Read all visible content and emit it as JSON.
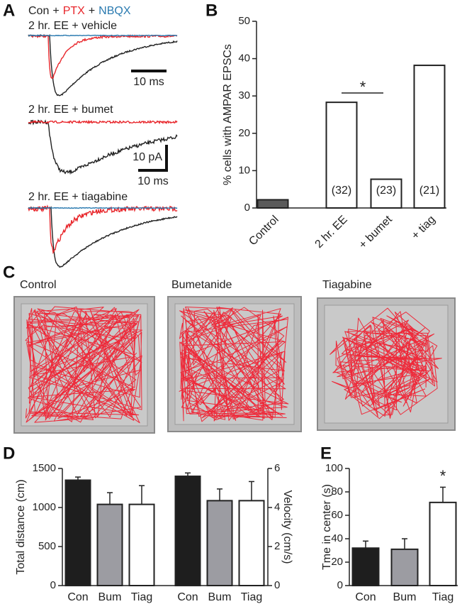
{
  "chart_data": [
    {
      "panel": "A",
      "type": "traces",
      "legend": [
        {
          "text": "Con",
          "color": "#222222"
        },
        {
          "text": "+",
          "color": "#222222"
        },
        {
          "text": "PTX",
          "color": "#e8262b"
        },
        {
          "text": "+",
          "color": "#222222"
        },
        {
          "text": "NBQX",
          "color": "#2a7ab0"
        }
      ],
      "traces": [
        "2 hr. EE + vehicle",
        "2 hr. EE + bumet",
        "2 hr. EE + tiagabine"
      ],
      "scale_labels": [
        "10 ms",
        "10 pA",
        "10 ms"
      ]
    },
    {
      "panel": "B",
      "type": "bar",
      "ylabel": "% cells with AMPAR EPSCs",
      "categories": [
        "Control",
        "2 hr. EE",
        "+ bumet",
        "+ tiag"
      ],
      "values": [
        2.2,
        28.3,
        7.7,
        38.2
      ],
      "colors": [
        "#5a5a5a",
        "#ffffff",
        "#ffffff",
        "#ffffff"
      ],
      "bar_labels": [
        null,
        "(32)",
        "(23)",
        "(21)"
      ],
      "annotation": "*",
      "ylim": [
        0,
        50
      ],
      "yticks": [
        0,
        10,
        20,
        30,
        40,
        50
      ]
    },
    {
      "panel": "C",
      "type": "image",
      "titles": [
        "Control",
        "Bumetanide",
        "Tiagabine"
      ]
    },
    {
      "panel": "D",
      "type": "bar",
      "ylabel": "Total distance (cm)",
      "y2label": "Velocity (cm/s)",
      "categories": [
        "Con",
        "Bum",
        "Tiag"
      ],
      "colors": [
        "#1e1e1e",
        "#9c9ca2",
        "#ffffff"
      ],
      "series": [
        {
          "values": [
            1350,
            1040,
            1040
          ],
          "errors": [
            40,
            150,
            240
          ]
        },
        {
          "values": [
            5.6,
            4.35,
            4.35
          ],
          "errors": [
            0.17,
            0.6,
            0.98
          ],
          "axis": "y2"
        }
      ],
      "ylim": [
        0,
        1500
      ],
      "yticks": [
        0,
        500,
        1000,
        1500
      ],
      "y2lim": [
        0,
        6
      ],
      "y2ticks": [
        0,
        2,
        4,
        6
      ]
    },
    {
      "panel": "E",
      "type": "bar",
      "ylabel": "Tme in center (s)",
      "categories": [
        "Con",
        "Bum",
        "Tiag"
      ],
      "values": [
        32,
        31,
        71
      ],
      "errors": [
        6,
        9,
        13
      ],
      "colors": [
        "#1e1e1e",
        "#9c9ca2",
        "#ffffff"
      ],
      "annotation": "*",
      "ylim": [
        0,
        100
      ],
      "yticks": [
        0,
        20,
        40,
        60,
        80,
        100
      ]
    }
  ]
}
